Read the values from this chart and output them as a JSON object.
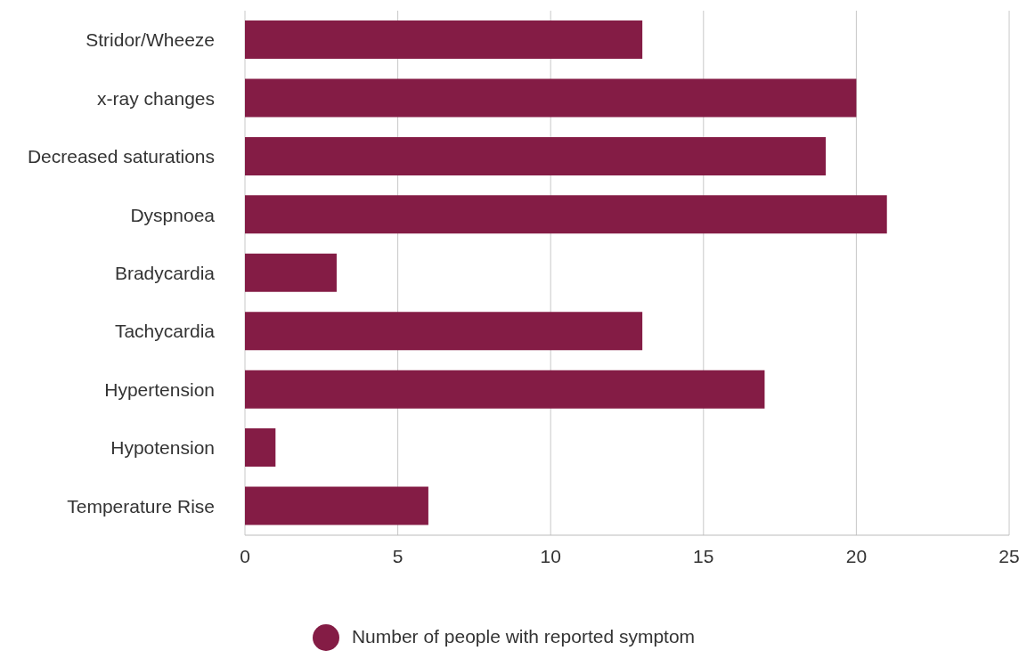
{
  "chart_data": {
    "type": "bar",
    "orientation": "horizontal",
    "categories": [
      "Stridor/Wheeze",
      "x-ray changes",
      "Decreased saturations",
      "Dyspnoea",
      "Bradycardia",
      "Tachycardia",
      "Hypertension",
      "Hypotension",
      "Temperature Rise"
    ],
    "series": [
      {
        "name": "Number of people with reported symptom",
        "color": "#841c45",
        "values": [
          13,
          20,
          19,
          21,
          3,
          13,
          17,
          1,
          6
        ]
      }
    ],
    "xlim": [
      0,
      25
    ],
    "xticks": [
      0,
      5,
      10,
      15,
      20,
      25
    ],
    "grid": "x",
    "legend": "bottom"
  }
}
